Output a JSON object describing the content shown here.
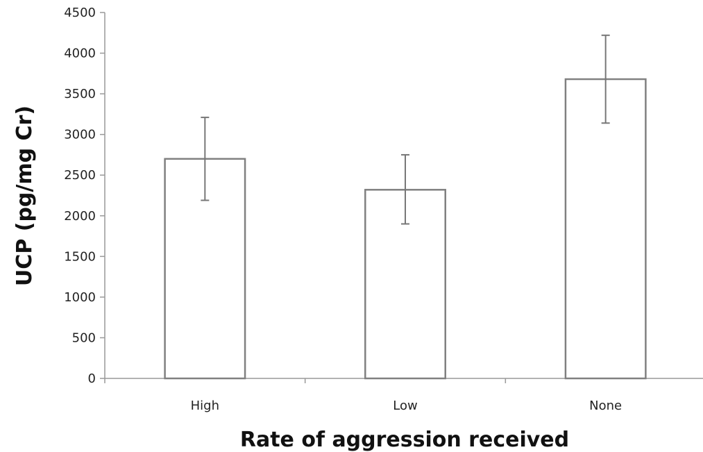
{
  "chart_data": {
    "type": "bar",
    "categories": [
      "High",
      "Low",
      "None"
    ],
    "values": [
      2700,
      2320,
      3680
    ],
    "error": [
      {
        "low": 2190,
        "high": 3210
      },
      {
        "low": 1900,
        "high": 2750
      },
      {
        "low": 3140,
        "high": 4220
      }
    ],
    "xlabel": "Rate of aggression received",
    "ylabel": "UCP (pg/mg Cr)",
    "ylim": [
      0,
      4500
    ],
    "yticks": [
      0,
      500,
      1000,
      1500,
      2000,
      2500,
      3000,
      3500,
      4000,
      4500
    ],
    "grid": false,
    "legend": "none",
    "bar_fill": "#ffffff",
    "bar_stroke": "#808080",
    "axis_color": "#999999"
  }
}
